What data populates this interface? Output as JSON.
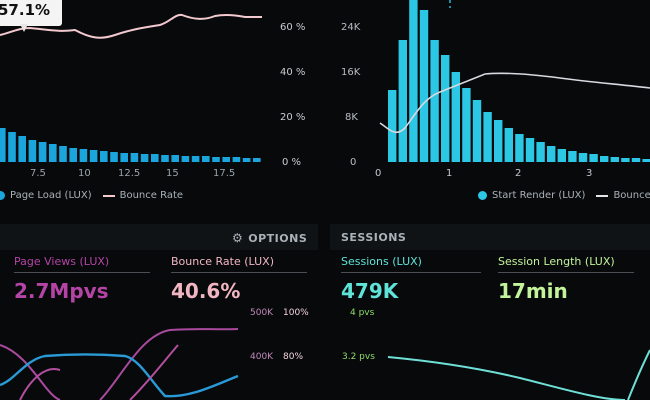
{
  "tooltip": {
    "value": "57.1%"
  },
  "left_chart": {
    "right_axis": [
      "60 %",
      "40 %",
      "20 %",
      "0 %"
    ],
    "x_ticks": [
      "7.5",
      "10",
      "12.5",
      "15",
      "17.5"
    ],
    "legend": {
      "bar": "Page Load (LUX)",
      "line": "Bounce Rate"
    }
  },
  "right_chart": {
    "left_axis": [
      "24K",
      "16K",
      "8K",
      "0"
    ],
    "x_ticks": [
      "0",
      "1",
      "2",
      "3"
    ],
    "legend": {
      "bar": "Start Render (LUX)",
      "line": "Bounce Rate"
    }
  },
  "options": {
    "label": "OPTIONS",
    "icon": "gear-icon"
  },
  "sessions_section": {
    "title": "SESSIONS"
  },
  "metrics": [
    {
      "label": "Page Views (LUX)",
      "value": "2.7Mpvs",
      "color": "#b544a6"
    },
    {
      "label": "Bounce Rate (LUX)",
      "value": "40.6%",
      "color": "#f2b6c3"
    },
    {
      "label": "Sessions (LUX)",
      "value": "479K",
      "color": "#5fe3d9"
    },
    {
      "label": "Session Length (LUX)",
      "value": "17min",
      "color": "#c3f39a"
    }
  ],
  "bottom_left_axis": {
    "k": [
      "500K",
      "400K"
    ],
    "pct": [
      "100%",
      "80%"
    ]
  },
  "bottom_right_axis": [
    "4 pvs",
    "3.2 pvs"
  ],
  "colors": {
    "bar_blue": "#1aa5dc",
    "bar_cyan": "#2cc7e4",
    "pink": "#f2c9cf"
  }
}
